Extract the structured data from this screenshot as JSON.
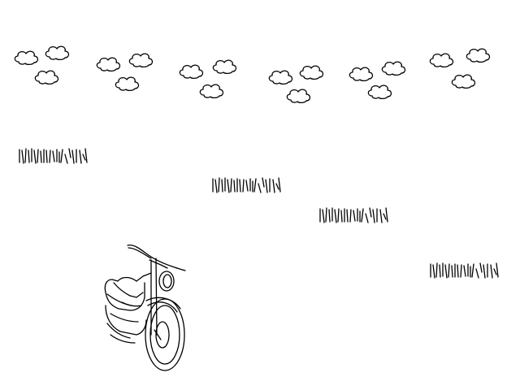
{
  "scene": {
    "background": "#ffffff",
    "stroke": "#000000",
    "clouds": [
      {
        "icon": "cloud-cluster-icon"
      },
      {
        "icon": "cloud-cluster-icon"
      },
      {
        "icon": "cloud-cluster-icon"
      },
      {
        "icon": "cloud-cluster-icon"
      },
      {
        "icon": "cloud-cluster-icon"
      },
      {
        "icon": "cloud-cluster-icon"
      }
    ],
    "grass_tufts": [
      {
        "icon": "grass-tuft-icon"
      },
      {
        "icon": "grass-tuft-icon"
      },
      {
        "icon": "grass-tuft-icon"
      },
      {
        "icon": "grass-tuft-icon"
      }
    ],
    "vehicle": {
      "icon": "motorcycle-icon"
    }
  }
}
